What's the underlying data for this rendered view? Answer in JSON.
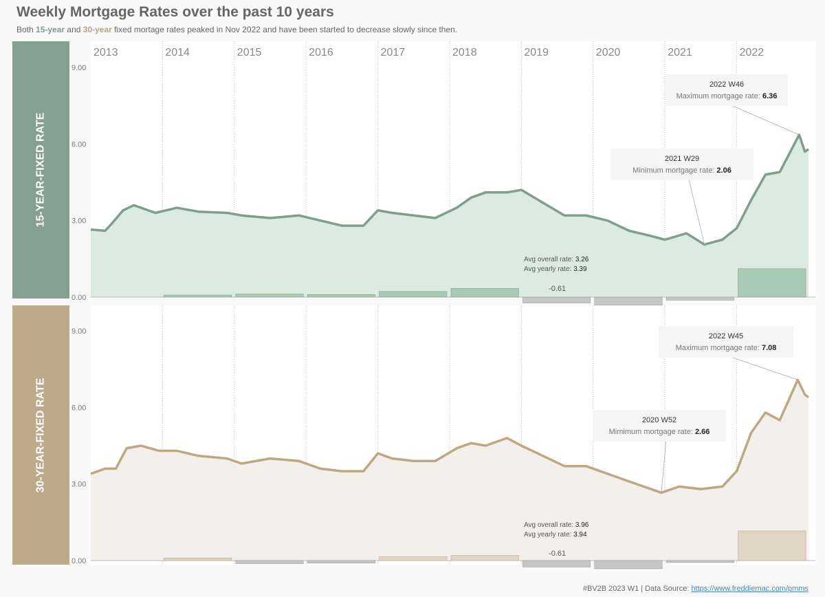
{
  "title": "Weekly Mortgage Rates over the past 10 years",
  "subtitle": {
    "part1": "Both ",
    "term15": "15-year",
    "part2": " and ",
    "term30": "30-year",
    "part3": " fixed mortage rates peaked in Nov 2022 and have been started to decrease slowly since then."
  },
  "footer": {
    "text": "#BV2B 2023 W1 | Data Source: ",
    "link": "https://www.freddiemac.com/pmms"
  },
  "colors": {
    "green_band": "#86a08f",
    "green_line": "#7f9f8c",
    "green_fill": "#dcebe2",
    "green_bar": "#a8c9b4",
    "tan_band": "#bcaa89",
    "tan_line": "#bca983",
    "tan_fill": "#f3f0eb",
    "tan_bar": "#e1d5c5",
    "neg_bar": "#c6c6c6"
  },
  "chart_data": [
    {
      "type": "line",
      "panel_label": "15-YEAR-FIXED RATE",
      "years": [
        "2013",
        "2014",
        "2015",
        "2016",
        "2017",
        "2018",
        "2019",
        "2020",
        "2021",
        "2022"
      ],
      "ylim": [
        0,
        10
      ],
      "yticks": [
        "0.00",
        "3.00",
        "6.00",
        "9.00"
      ],
      "series_name": "15-year fixed rate",
      "x_year_fraction": [
        2013.0,
        2013.2,
        2013.3,
        2013.45,
        2013.6,
        2013.9,
        2014.2,
        2014.5,
        2014.9,
        2015.1,
        2015.5,
        2015.9,
        2016.2,
        2016.5,
        2016.8,
        2017.0,
        2017.2,
        2017.5,
        2017.8,
        2018.1,
        2018.3,
        2018.5,
        2018.8,
        2019.0,
        2019.3,
        2019.6,
        2019.9,
        2020.2,
        2020.5,
        2020.8,
        2021.0,
        2021.3,
        2021.55,
        2021.8,
        2022.0,
        2022.2,
        2022.4,
        2022.6,
        2022.87,
        2022.95,
        2023.0
      ],
      "y_rate": [
        2.65,
        2.6,
        2.9,
        3.4,
        3.6,
        3.3,
        3.5,
        3.35,
        3.3,
        3.2,
        3.1,
        3.2,
        3.0,
        2.8,
        2.8,
        3.4,
        3.3,
        3.2,
        3.1,
        3.5,
        3.9,
        4.1,
        4.1,
        4.2,
        3.7,
        3.2,
        3.2,
        3.0,
        2.6,
        2.4,
        2.25,
        2.5,
        2.06,
        2.25,
        2.7,
        3.8,
        4.8,
        4.9,
        6.36,
        5.7,
        5.8
      ],
      "avg_overall_label": "Avg overall rate:",
      "avg_overall": "3.26",
      "avg_yearly_label": "Avg yearly rate:",
      "avg_yearly": "3.39",
      "yearly_diff": [
        0.08,
        0.12,
        0.1,
        0.22,
        0.34,
        -0.23,
        -0.32,
        -0.12,
        1.11
      ],
      "bar_label": "-0.61",
      "max_callout": {
        "title": "2022 W46",
        "label": "Maximum mortgage rate: ",
        "value": "6.36",
        "x": 2022.87,
        "y": 6.36
      },
      "min_callout": {
        "title": "2021 W29",
        "label": "Minimum mortgage rate: ",
        "value": "2.06",
        "x": 2021.55,
        "y": 2.06
      }
    },
    {
      "type": "line",
      "panel_label": "30-YEAR-FIXED RATE",
      "years": [
        "2013",
        "2014",
        "2015",
        "2016",
        "2017",
        "2018",
        "2019",
        "2020",
        "2021",
        "2022"
      ],
      "ylim": [
        0,
        10
      ],
      "yticks": [
        "0.00",
        "3.00",
        "6.00",
        "9.00"
      ],
      "series_name": "30-year fixed rate",
      "x_year_fraction": [
        2013.0,
        2013.2,
        2013.35,
        2013.5,
        2013.7,
        2013.95,
        2014.2,
        2014.5,
        2014.9,
        2015.1,
        2015.5,
        2015.9,
        2016.2,
        2016.5,
        2016.8,
        2017.0,
        2017.2,
        2017.5,
        2017.8,
        2018.1,
        2018.3,
        2018.5,
        2018.8,
        2019.0,
        2019.3,
        2019.6,
        2019.9,
        2020.2,
        2020.5,
        2020.95,
        2021.2,
        2021.5,
        2021.8,
        2022.0,
        2022.2,
        2022.4,
        2022.6,
        2022.85,
        2022.95,
        2023.0
      ],
      "y_rate": [
        3.4,
        3.6,
        3.6,
        4.4,
        4.5,
        4.3,
        4.3,
        4.1,
        4.0,
        3.8,
        4.0,
        3.9,
        3.6,
        3.5,
        3.5,
        4.2,
        4.0,
        3.9,
        3.9,
        4.4,
        4.6,
        4.5,
        4.8,
        4.5,
        4.1,
        3.7,
        3.7,
        3.4,
        3.1,
        2.66,
        2.9,
        2.8,
        2.9,
        3.5,
        5.0,
        5.8,
        5.5,
        7.08,
        6.5,
        6.4
      ],
      "avg_overall_label": "Avg overall rate:",
      "avg_overall": "3.96",
      "avg_yearly_label": "Avg yearly rate:",
      "avg_yearly": "3.94",
      "yearly_diff": [
        0.1,
        -0.12,
        -0.1,
        0.15,
        0.2,
        -0.25,
        -0.32,
        -0.08,
        1.16
      ],
      "bar_label": "-0.61",
      "max_callout": {
        "title": "2022 W45",
        "label": "Maximum mortgage rate: ",
        "value": "7.08",
        "x": 2022.85,
        "y": 7.08
      },
      "min_callout": {
        "title": "2020 W52",
        "label": "Mimimum mortgage rate: ",
        "value": "2.66",
        "x": 2020.95,
        "y": 2.66
      }
    }
  ]
}
